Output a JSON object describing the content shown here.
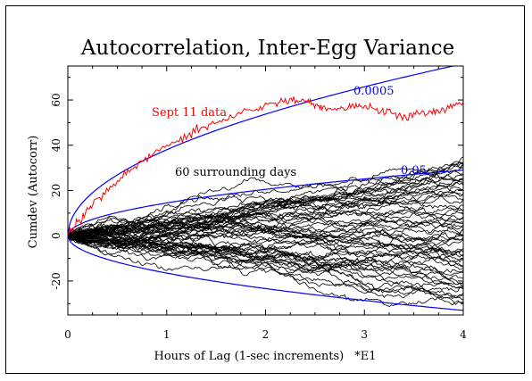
{
  "chart_data": {
    "type": "line",
    "title": "Autocorrelation, Inter-Egg Variance",
    "xlabel": "Hours of Lag (1-sec increments)",
    "xlabel_scale": "*E1",
    "ylabel": "Cumdev (Autocorr)",
    "xlim": [
      0,
      4
    ],
    "ylim": [
      -35,
      75
    ],
    "x_ticks": [
      "0",
      "1",
      "2",
      "3",
      "4"
    ],
    "y_ticks": [
      "-20",
      "0",
      "20",
      "40",
      "60"
    ],
    "grid": false,
    "colors": {
      "highlight": "#ff0000",
      "envelope": "#0000ff",
      "background": "#000000"
    },
    "series": [
      {
        "name": "Sept 11 data",
        "x": [
          0,
          0.1,
          0.25,
          0.5,
          0.75,
          1.0,
          1.25,
          1.5,
          1.75,
          2.0,
          2.2,
          2.4,
          2.55,
          2.7,
          2.85,
          3.0,
          3.2,
          3.4,
          3.6,
          3.8,
          4.0
        ],
        "y": [
          0,
          6,
          14,
          24,
          33,
          40,
          45,
          50,
          54,
          58,
          60,
          60,
          57,
          55,
          57,
          57,
          55,
          52,
          54,
          56,
          59
        ]
      },
      {
        "name": "60 surrounding days",
        "count": 60,
        "x_max": 4,
        "y_range_at_end": [
          -30,
          35
        ]
      }
    ],
    "envelopes": [
      {
        "label": "0.0005",
        "coef": 38,
        "form": "coef*sqrt(x)"
      },
      {
        "label": "0.05",
        "coef": 14.5,
        "form": "coef*sqrt(x)"
      },
      {
        "label": "",
        "coef": -16.5,
        "form": "coef*sqrt(x)"
      }
    ],
    "annotations": {
      "sept11": "Sept 11 data",
      "surrounding": "60 surrounding days",
      "p_high": "0.0005",
      "p_mid": "0.05"
    }
  }
}
